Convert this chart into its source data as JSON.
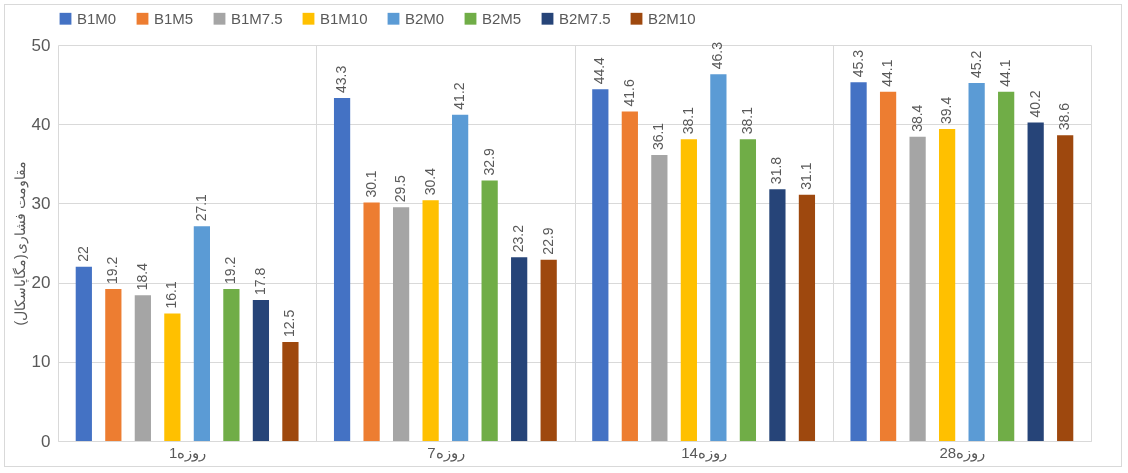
{
  "chart_data": {
    "type": "bar",
    "ylabel": "مقاومت فشاری(مگاپاسکال)",
    "categories": [
      "1روزه",
      "7روزه",
      "14روزه",
      "28روزه"
    ],
    "series": [
      {
        "name": "B1M0",
        "color": "#4472c4",
        "values": [
          22,
          43.3,
          44.4,
          45.3
        ]
      },
      {
        "name": "B1M5",
        "color": "#ed7d31",
        "values": [
          19.2,
          30.1,
          41.6,
          44.1
        ]
      },
      {
        "name": "B1M7.5",
        "color": "#a5a5a5",
        "values": [
          18.4,
          29.5,
          36.1,
          38.4
        ]
      },
      {
        "name": "B1M10",
        "color": "#ffc000",
        "values": [
          16.1,
          30.4,
          38.1,
          39.4
        ]
      },
      {
        "name": "B2M0",
        "color": "#5b9bd5",
        "values": [
          27.1,
          41.2,
          46.3,
          45.2
        ]
      },
      {
        "name": "B2M5",
        "color": "#70ad47",
        "values": [
          19.2,
          32.9,
          38.1,
          44.1
        ]
      },
      {
        "name": "B2M7.5",
        "color": "#264478",
        "values": [
          17.8,
          23.2,
          31.8,
          40.2
        ]
      },
      {
        "name": "B2M10",
        "color": "#9e480e",
        "values": [
          12.5,
          22.9,
          31.1,
          38.6
        ]
      }
    ],
    "ylim": [
      0,
      50
    ],
    "yticks": [
      0,
      10,
      20,
      30,
      40,
      50
    ],
    "grid": true,
    "legend": "top",
    "data_labels": true
  }
}
